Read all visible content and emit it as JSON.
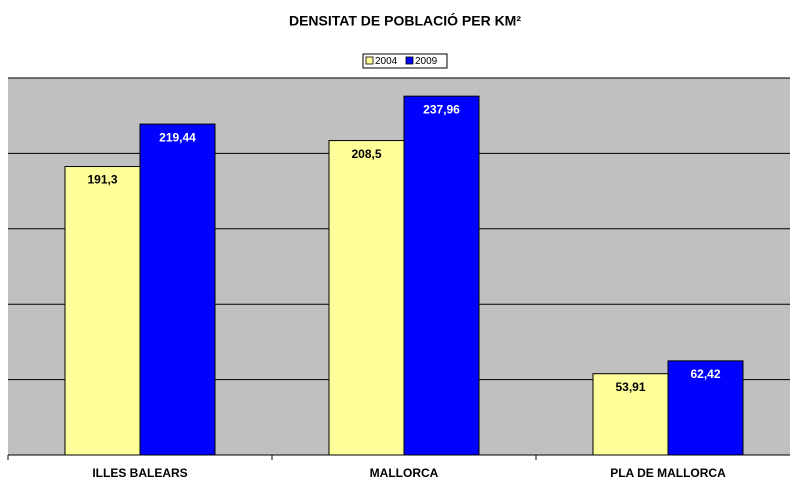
{
  "chart_data": {
    "type": "bar",
    "title": "DENSITAT DE POBLACIÓ PER KM²",
    "categories": [
      "ILLES BALEARS",
      "MALLORCA",
      "PLA DE MALLORCA"
    ],
    "series": [
      {
        "name": "2004",
        "color": "#ffff99",
        "values": [
          191.3,
          208.5,
          53.91
        ],
        "value_labels": [
          "191,3",
          "208,5",
          "53,91"
        ]
      },
      {
        "name": "2009",
        "color": "#0000ff",
        "values": [
          219.44,
          237.96,
          62.42
        ],
        "value_labels": [
          "219,44",
          "237,96",
          "62,42"
        ]
      }
    ],
    "ylim": [
      0,
      250
    ],
    "yticks": [
      0,
      50,
      100,
      150,
      200,
      250
    ],
    "grid": true
  }
}
